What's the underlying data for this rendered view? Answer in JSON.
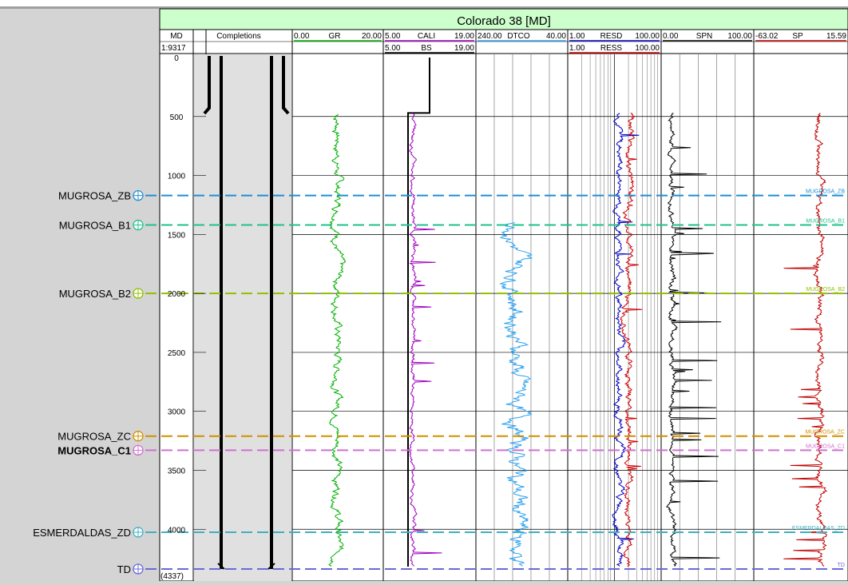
{
  "title": "Colorado 38 [MD]",
  "md_header": {
    "label": "MD",
    "scale": "1:9317"
  },
  "completions_header": "Completions",
  "depth_range": [
    0,
    4337
  ],
  "total_depth_label": "(4337)",
  "depth_ticks": [
    0,
    500,
    1000,
    1500,
    2000,
    2500,
    3000,
    3500,
    4000
  ],
  "tracks": [
    {
      "id": "gr",
      "curves": [
        {
          "name": "GR",
          "min": "0.00",
          "max": "20.00",
          "color": "#00b000"
        }
      ]
    },
    {
      "id": "cali",
      "curves": [
        {
          "name": "CALI",
          "min": "5.00",
          "max": "19.00",
          "color": "#a000c0"
        },
        {
          "name": "BS",
          "min": "5.00",
          "max": "19.00",
          "color": "#000000"
        }
      ]
    },
    {
      "id": "dtco",
      "curves": [
        {
          "name": "DTCO",
          "min": "240.00",
          "max": "40.00",
          "color": "#2aa0f0"
        }
      ]
    },
    {
      "id": "res",
      "curves": [
        {
          "name": "RESD",
          "min": "1.00",
          "max": "100.00",
          "color": "#0000c0"
        },
        {
          "name": "RESS",
          "min": "1.00",
          "max": "100.00",
          "color": "#d00000"
        }
      ]
    },
    {
      "id": "spn",
      "curves": [
        {
          "name": "SPN",
          "min": "0.00",
          "max": "100.00",
          "color": "#000000"
        }
      ]
    },
    {
      "id": "sp",
      "curves": [
        {
          "name": "SP",
          "min": "-63.02",
          "max": "15.59",
          "color": "#c00000"
        }
      ]
    }
  ],
  "tops": [
    {
      "name": "MUGROSA_ZB",
      "depth": 1170,
      "color": "#1e90d0",
      "bold": false,
      "track_label": "MUGROSA_ZB"
    },
    {
      "name": "MUGROSA_B1",
      "depth": 1420,
      "color": "#20c090",
      "bold": false,
      "track_label": "MUGROSA_B1"
    },
    {
      "name": "MUGROSA_B2",
      "depth": 2000,
      "color": "#90c000",
      "bold": false,
      "track_label": "MUGROSA_B2"
    },
    {
      "name": "MUGROSA_ZC",
      "depth": 3210,
      "color": "#d09000",
      "bold": false,
      "track_label": "MUGROSA_ZC"
    },
    {
      "name": "MUGROSA_C1",
      "depth": 3330,
      "color": "#d070d0",
      "bold": true,
      "track_label": "MUGROSA_C1"
    },
    {
      "name": "ESMERDALDAS_ZD",
      "depth": 4025,
      "color": "#40b0c0",
      "bold": false,
      "track_label": "ESMERDALDAS_ZD"
    },
    {
      "name": "TD",
      "depth": 4337,
      "color": "#6a6ad8",
      "bold": false,
      "track_label": "TD"
    }
  ]
}
